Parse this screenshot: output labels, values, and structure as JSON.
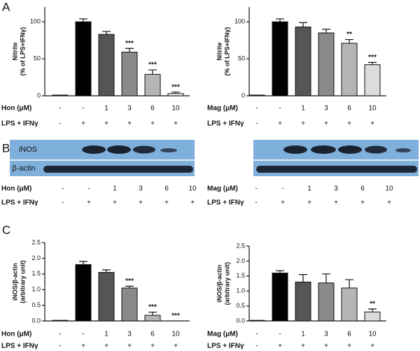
{
  "panels": [
    "A",
    "B",
    "C"
  ],
  "chart_data": [
    {
      "type": "bar",
      "ylabel": [
        "Nitrite",
        "(% of LPS+IFNγ)"
      ],
      "values": [
        1,
        100,
        83,
        59,
        29,
        3
      ],
      "errors": [
        0,
        4,
        4,
        5,
        6,
        2
      ],
      "significance": [
        null,
        null,
        null,
        "***",
        "***",
        "***"
      ],
      "colors": [
        "#111111",
        "#000000",
        "#555555",
        "#8a8a8a",
        "#b5b5b5",
        "#f2f2f2"
      ],
      "ylim": [
        0,
        120
      ],
      "yticks": [
        0,
        50,
        100
      ],
      "conditions": [
        {
          "label": "Hon (μM)",
          "values": [
            "-",
            "-",
            "1",
            "3",
            "6",
            "10"
          ]
        },
        {
          "label": "LPS + IFNγ",
          "values": [
            "-",
            "+",
            "+",
            "+",
            "+",
            "+"
          ]
        }
      ]
    },
    {
      "type": "bar",
      "ylabel": [
        "Nitrite",
        "(% of LPS+IFNγ)"
      ],
      "values": [
        1,
        100,
        93,
        85,
        71,
        42
      ],
      "errors": [
        0,
        4,
        6,
        5,
        5,
        3
      ],
      "significance": [
        null,
        null,
        null,
        null,
        "**",
        "***"
      ],
      "colors": [
        "#111111",
        "#000000",
        "#555555",
        "#8a8a8a",
        "#b5b5b5",
        "#dcdcdc"
      ],
      "ylim": [
        0,
        120
      ],
      "yticks": [
        0,
        50,
        100
      ],
      "conditions": [
        {
          "label": "Mag (μM)",
          "values": [
            "-",
            "-",
            "1",
            "3",
            "6",
            "10"
          ]
        },
        {
          "label": "LPS + IFNγ",
          "values": [
            "-",
            "+",
            "+",
            "+",
            "+",
            "+"
          ]
        }
      ]
    },
    {
      "type": "bar",
      "ylabel": [
        "iNOS/β-actin",
        "(arbitrary unit)"
      ],
      "values": [
        0.02,
        1.8,
        1.55,
        1.05,
        0.18,
        0
      ],
      "errors": [
        0,
        0.1,
        0.08,
        0.06,
        0.1,
        0
      ],
      "significance": [
        null,
        null,
        null,
        "***",
        "***",
        "***"
      ],
      "colors": [
        "#111111",
        "#000000",
        "#555555",
        "#8a8a8a",
        "#b5b5b5",
        "#f2f2f2"
      ],
      "ylim": [
        0,
        2.5
      ],
      "yticks": [
        {
          "value": 0,
          "label": "0.0"
        },
        0.5,
        {
          "value": 1,
          "label": "1.0"
        },
        1.5,
        {
          "value": 2,
          "label": "2.0"
        },
        2.5
      ],
      "conditions": [
        {
          "label": "Hon (μM)",
          "values": [
            "-",
            "-",
            "1",
            "3",
            "6",
            "10"
          ]
        },
        {
          "label": "LPS + IFNγ",
          "values": [
            "-",
            "+",
            "+",
            "+",
            "+",
            "+"
          ]
        }
      ]
    },
    {
      "type": "bar",
      "ylabel": [
        "iNOS/β-actin",
        "(arbitrary unit)"
      ],
      "values": [
        0.02,
        1.6,
        1.3,
        1.27,
        1.1,
        0.3
      ],
      "errors": [
        0,
        0.08,
        0.25,
        0.3,
        0.28,
        0.1
      ],
      "significance": [
        null,
        null,
        null,
        null,
        null,
        "**"
      ],
      "colors": [
        "#111111",
        "#000000",
        "#555555",
        "#8a8a8a",
        "#b5b5b5",
        "#dcdcdc"
      ],
      "ylim": [
        0,
        2.5
      ],
      "yticks": [
        {
          "value": 0,
          "label": "0.0"
        },
        0.5,
        {
          "value": 1,
          "label": "1.0"
        },
        1.5,
        {
          "value": 2,
          "label": "2.0"
        },
        2.5
      ],
      "conditions": [
        {
          "label": "Mag (μM)",
          "values": [
            "-",
            "-",
            "1",
            "3",
            "6",
            "10"
          ]
        },
        {
          "label": "LPS + IFNγ",
          "values": [
            "-",
            "+",
            "+",
            "+",
            "+",
            "+"
          ]
        }
      ]
    }
  ],
  "blots": [
    {
      "rows": [
        "iNOS",
        "β-actin"
      ],
      "conditions": [
        {
          "label": "Hon (μM)",
          "values": [
            "-",
            "-",
            "1",
            "3",
            "6",
            "10"
          ]
        },
        {
          "label": "LPS + IFNγ",
          "values": [
            "-",
            "+",
            "+",
            "+",
            "+",
            "+"
          ]
        }
      ]
    },
    {
      "conditions": [
        {
          "label": "Mag (μM)",
          "values": [
            "-",
            "-",
            "1",
            "3",
            "6",
            "10"
          ]
        },
        {
          "label": "LPS + IFNγ",
          "values": [
            "-",
            "+",
            "+",
            "+",
            "+",
            "+"
          ]
        }
      ]
    }
  ]
}
